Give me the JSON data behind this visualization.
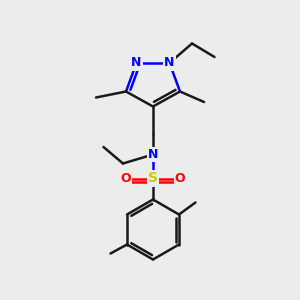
{
  "bg_color": "#ececec",
  "bond_color": "#1a1a1a",
  "n_color": "#0000ff",
  "o_color": "#ff0000",
  "s_color": "#cccc00",
  "bond_lw": 1.8,
  "font_size": 9.0,
  "figsize": [
    3.0,
    3.0
  ],
  "dpi": 100,
  "xlim": [
    0,
    10
  ],
  "ylim": [
    0,
    10
  ]
}
